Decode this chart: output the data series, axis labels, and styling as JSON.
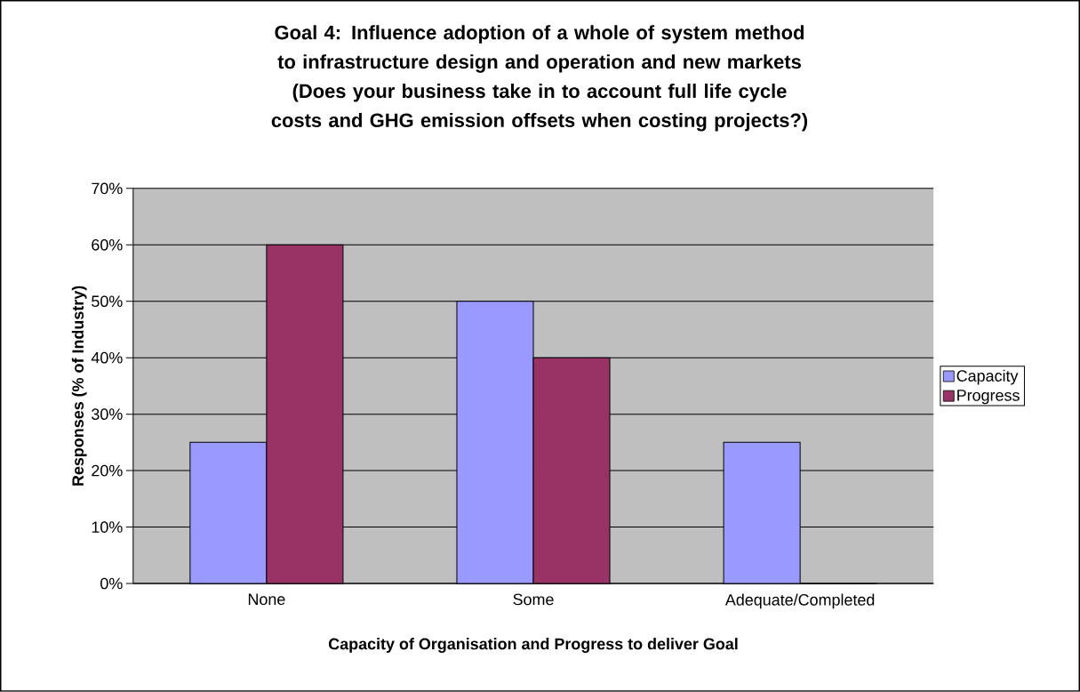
{
  "chart_data": {
    "type": "bar",
    "title": "Goal 4: Influence adoption of a whole of system method to infrastructure design and operation and new markets",
    "subtitle": "(Does your business take in to account full life cycle costs and GHG emission offsets when costing projects?)",
    "xlabel": "Capacity of Organisation and Progress to deliver Goal",
    "ylabel": "Responses (% of Industry)",
    "categories": [
      "None",
      "Some",
      "Adequate/Completed"
    ],
    "series": [
      {
        "name": "Capacity",
        "color": "#9999ff",
        "values": [
          25,
          50,
          25
        ]
      },
      {
        "name": "Progress",
        "color": "#993366",
        "values": [
          60,
          40,
          0
        ]
      }
    ],
    "ylim": [
      0,
      70
    ],
    "yticks": [
      {
        "value": 0,
        "label": "0%"
      },
      {
        "value": 10,
        "label": "10%"
      },
      {
        "value": 20,
        "label": "20%"
      },
      {
        "value": 30,
        "label": "30%"
      },
      {
        "value": 40,
        "label": "40%"
      },
      {
        "value": 50,
        "label": "50%"
      },
      {
        "value": 60,
        "label": "60%"
      },
      {
        "value": 70,
        "label": "70%"
      }
    ],
    "grid": "y",
    "legend": "right"
  }
}
